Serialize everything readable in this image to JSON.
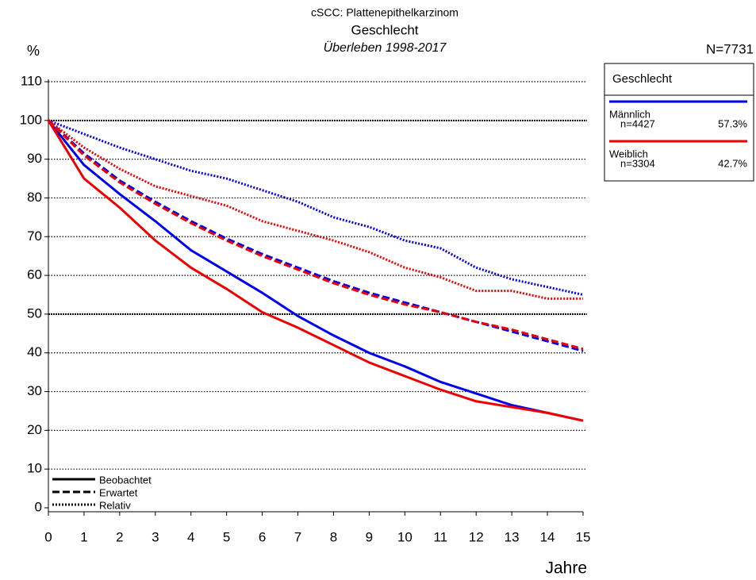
{
  "chart_data": {
    "type": "line",
    "title": "cSCC: Plattenepithelkarzinom",
    "subtitle": "Geschlecht",
    "subtitle2": "Überleben 1998-2017",
    "y_label": "%",
    "x_label": "Jahre",
    "total": "N=7731",
    "legend_title": "Geschlecht",
    "x": [
      0,
      1,
      2,
      3,
      4,
      5,
      6,
      7,
      8,
      9,
      10,
      11,
      12,
      13,
      14,
      15
    ],
    "xlim": [
      0,
      15
    ],
    "xticks": [
      0,
      1,
      2,
      3,
      4,
      5,
      6,
      7,
      8,
      9,
      10,
      11,
      12,
      13,
      14,
      15
    ],
    "ylim": [
      0,
      110
    ],
    "yticks": [
      0,
      10,
      20,
      30,
      40,
      50,
      60,
      70,
      80,
      90,
      100,
      110
    ],
    "grid": true,
    "line_styles": [
      {
        "name": "Beobachtet",
        "dash": "none"
      },
      {
        "name": "Erwartet",
        "dash": "9,4"
      },
      {
        "name": "Relativ",
        "dash": "2,2"
      }
    ],
    "series": [
      {
        "name": "Männlich",
        "n": "n=4427",
        "share": "57.3%",
        "color": "#0000ee",
        "values": [
          [
            100,
            88.5,
            81,
            74,
            66.5,
            61,
            55.5,
            49.5,
            44.5,
            40,
            36.5,
            32.5,
            29.5,
            26.5,
            24.5,
            22.5
          ],
          [
            100,
            91.5,
            84.5,
            79,
            74,
            69.5,
            65.5,
            62,
            58.5,
            55.5,
            53,
            50.5,
            48,
            45.5,
            43,
            40.5
          ],
          [
            100,
            96.5,
            93,
            90,
            87,
            85,
            82,
            79,
            75,
            72.5,
            69,
            67,
            62,
            59,
            57,
            55
          ]
        ]
      },
      {
        "name": "Weiblich",
        "n": "n=3304",
        "share": "42.7%",
        "color": "#ee0000",
        "values": [
          [
            100,
            85,
            77.5,
            69,
            62,
            56.5,
            50.5,
            46.5,
            42,
            37.5,
            34,
            30.5,
            27.5,
            26,
            24.5,
            22.5
          ],
          [
            100,
            91,
            84,
            78.5,
            73.5,
            69,
            65,
            61.5,
            58,
            55,
            52.5,
            50.5,
            48,
            46,
            43.5,
            41
          ],
          [
            100,
            93,
            87.5,
            83,
            80.5,
            78,
            74,
            71.5,
            69,
            66,
            62,
            59.5,
            56,
            56,
            54,
            54
          ]
        ]
      }
    ]
  }
}
